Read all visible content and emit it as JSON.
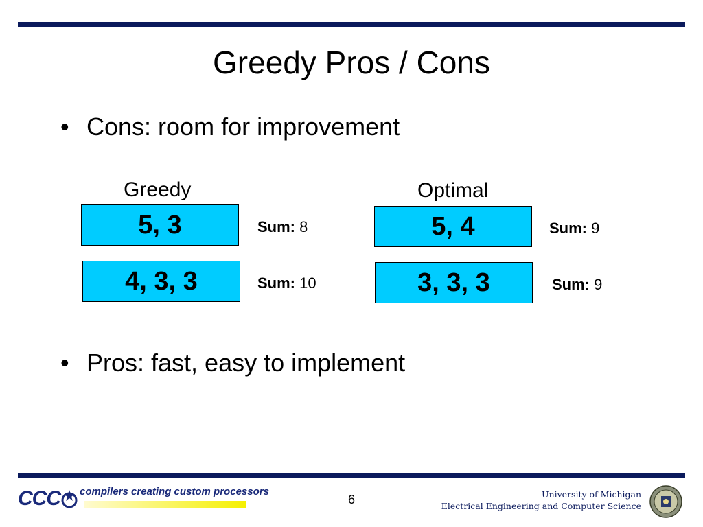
{
  "slide": {
    "title": "Greedy Pros / Cons",
    "bullets": [
      {
        "marker": "•",
        "text": "Cons: room for improvement"
      },
      {
        "marker": "•",
        "text": "Pros: fast, easy to implement"
      }
    ]
  },
  "comparison": {
    "greedy": {
      "heading": "Greedy",
      "rows": [
        {
          "values": "5, 3",
          "sum_label": "Sum:",
          "sum_value": "8"
        },
        {
          "values": "4, 3, 3",
          "sum_label": "Sum:",
          "sum_value": "10"
        }
      ]
    },
    "optimal": {
      "heading": "Optimal",
      "rows": [
        {
          "values": "5, 4",
          "sum_label": "Sum:",
          "sum_value": "9"
        },
        {
          "values": "3, 3, 3",
          "sum_label": "Sum:",
          "sum_value": "9"
        }
      ]
    }
  },
  "footer": {
    "logo_text": "CCC",
    "logo_tagline": "compilers creating custom processors",
    "page_number": "6",
    "university_line1": "University of Michigan",
    "university_line2": "Electrical Engineering and Computer Science",
    "seal_icon": "university-seal-icon"
  },
  "colors": {
    "rule": "#0b1a5c",
    "box_fill": "#00ccff",
    "logo": "#1a2a7a",
    "logo_bar": "#f5f000"
  }
}
